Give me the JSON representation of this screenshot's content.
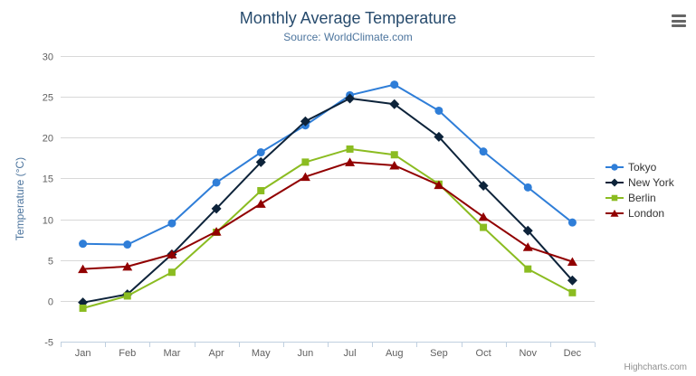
{
  "header": {
    "title": "Monthly Average Temperature",
    "subtitle": "Source: WorldClimate.com"
  },
  "credits": "Highcharts.com",
  "icons": {
    "export_menu": "hamburger-icon"
  },
  "chart_data": {
    "type": "line",
    "title": "Monthly Average Temperature",
    "subtitle": "Source: WorldClimate.com",
    "categories": [
      "Jan",
      "Feb",
      "Mar",
      "Apr",
      "May",
      "Jun",
      "Jul",
      "Aug",
      "Sep",
      "Oct",
      "Nov",
      "Dec"
    ],
    "xlabel": "",
    "ylabel": "Temperature (°C)",
    "ylim": [
      -5,
      30
    ],
    "ytick_interval": 5,
    "grid": true,
    "legend_position": "right",
    "colors": {
      "grid": "#d8d8d8",
      "axis_line": "#c0d0e0",
      "tick_label": "#606060",
      "axis_title": "#4d759e",
      "title": "#274b6d",
      "subtitle": "#4d759e",
      "legend_text": "#333333"
    },
    "series": [
      {
        "name": "Tokyo",
        "color": "#2f7ed8",
        "marker": "circle",
        "values": [
          7.0,
          6.9,
          9.5,
          14.5,
          18.2,
          21.5,
          25.2,
          26.5,
          23.3,
          18.3,
          13.9,
          9.6
        ]
      },
      {
        "name": "New York",
        "color": "#0d233a",
        "marker": "diamond",
        "values": [
          -0.2,
          0.8,
          5.7,
          11.3,
          17.0,
          22.0,
          24.8,
          24.1,
          20.1,
          14.1,
          8.6,
          2.5
        ]
      },
      {
        "name": "Berlin",
        "color": "#8bbc21",
        "marker": "square",
        "values": [
          -0.9,
          0.6,
          3.5,
          8.4,
          13.5,
          17.0,
          18.6,
          17.9,
          14.3,
          9.0,
          3.9,
          1.0
        ]
      },
      {
        "name": "London",
        "color": "#910000",
        "marker": "triangle",
        "values": [
          3.9,
          4.2,
          5.7,
          8.5,
          11.9,
          15.2,
          17.0,
          16.6,
          14.2,
          10.3,
          6.6,
          4.8
        ]
      }
    ]
  }
}
